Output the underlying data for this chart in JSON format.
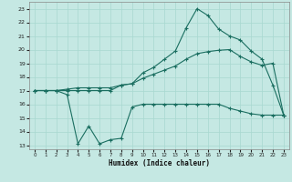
{
  "xlabel": "Humidex (Indice chaleur)",
  "bg_color": "#c5e8e3",
  "grid_color": "#a8d8d0",
  "line_color": "#1a6e60",
  "xlim": [
    -0.5,
    23.5
  ],
  "ylim": [
    12.7,
    23.5
  ],
  "xticks": [
    0,
    1,
    2,
    3,
    4,
    5,
    6,
    7,
    8,
    9,
    10,
    11,
    12,
    13,
    14,
    15,
    16,
    17,
    18,
    19,
    20,
    21,
    22,
    23
  ],
  "yticks": [
    13,
    14,
    15,
    16,
    17,
    18,
    19,
    20,
    21,
    22,
    23
  ],
  "s1_x": [
    0,
    1,
    2,
    3,
    4,
    5,
    6,
    7,
    8,
    9,
    10,
    11,
    12,
    13,
    14,
    15,
    16,
    17,
    18,
    19,
    20,
    21,
    22,
    23
  ],
  "s1_y": [
    17.0,
    17.0,
    17.0,
    17.1,
    17.2,
    17.2,
    17.2,
    17.2,
    17.4,
    17.5,
    17.9,
    18.2,
    18.5,
    18.8,
    19.3,
    19.7,
    19.85,
    19.95,
    20.0,
    19.5,
    19.1,
    18.85,
    19.0,
    15.2
  ],
  "s2_x": [
    0,
    1,
    2,
    3,
    4,
    5,
    6,
    7,
    8,
    9,
    10,
    11,
    12,
    13,
    14,
    15,
    16,
    17,
    18,
    19,
    20,
    21,
    22,
    23
  ],
  "s2_y": [
    17.0,
    17.0,
    17.0,
    17.0,
    17.0,
    17.0,
    17.0,
    17.0,
    17.4,
    17.5,
    18.3,
    18.7,
    19.3,
    19.9,
    21.6,
    23.0,
    22.5,
    21.5,
    21.0,
    20.7,
    19.9,
    19.3,
    17.4,
    15.2
  ],
  "s3_x": [
    0,
    1,
    2,
    3,
    4,
    5,
    6,
    7,
    8,
    9,
    10,
    11,
    12,
    13,
    14,
    15,
    16,
    17,
    18,
    19,
    20,
    21,
    22,
    23
  ],
  "s3_y": [
    17.0,
    17.0,
    17.0,
    16.7,
    13.1,
    14.4,
    13.1,
    13.4,
    13.5,
    15.8,
    16.0,
    16.0,
    16.0,
    16.0,
    16.0,
    16.0,
    16.0,
    16.0,
    15.7,
    15.5,
    15.3,
    15.2,
    15.2,
    15.2
  ]
}
